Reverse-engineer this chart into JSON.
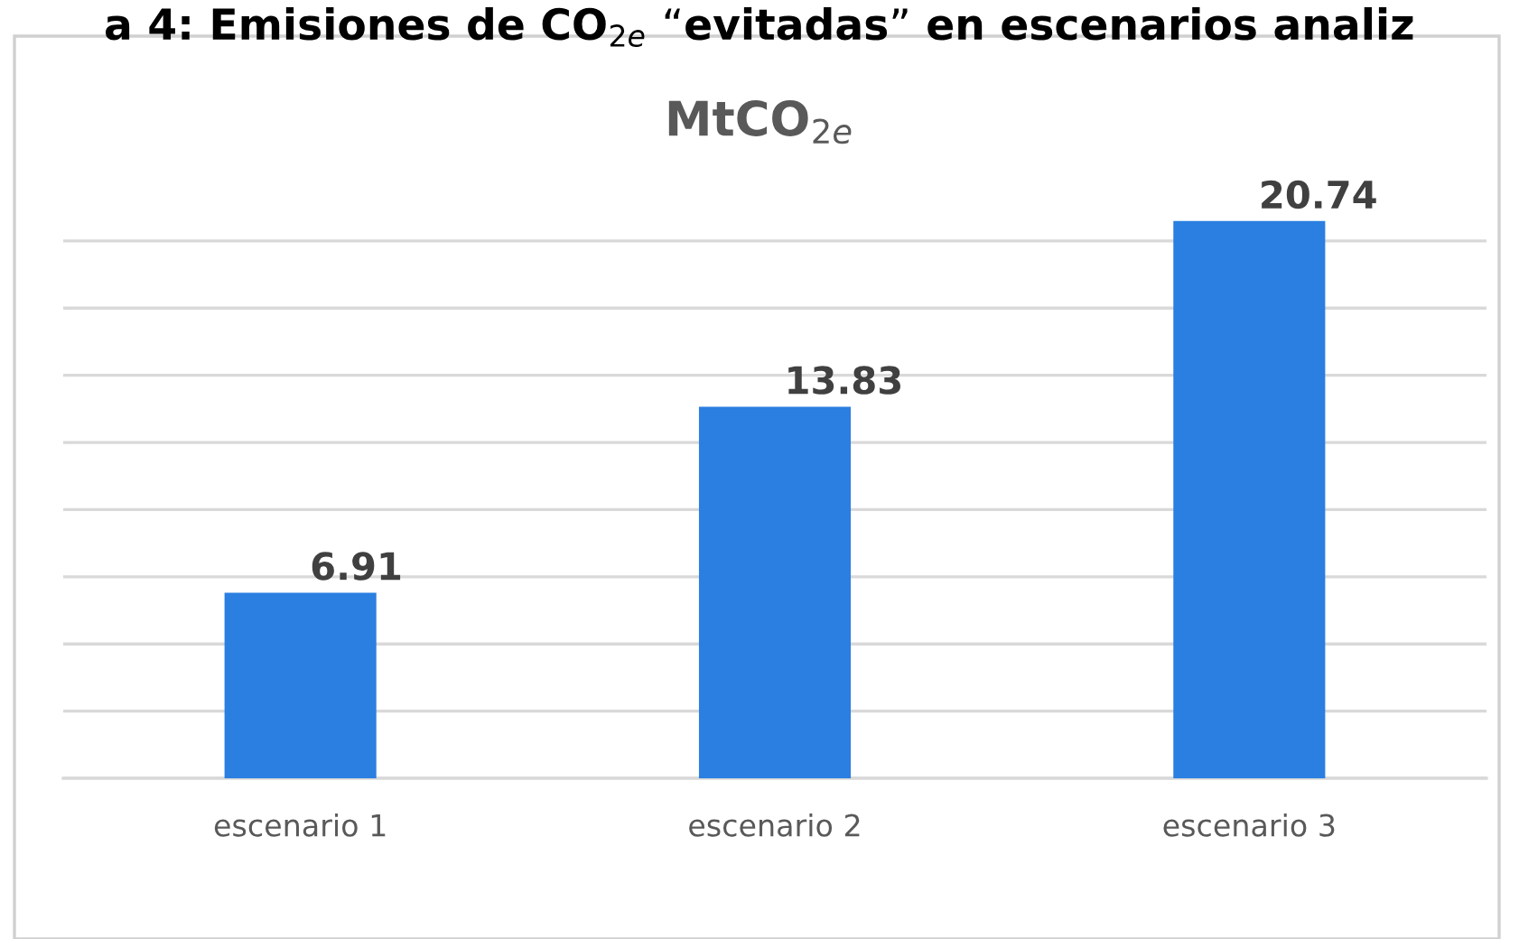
{
  "chart_data": {
    "type": "bar",
    "title": "a 4: Emisiones de CO$_{2e}$ “evitadas” en escenarios analiz",
    "subtitle": "MtCO$_{2e}$",
    "categories": [
      "escenario 1",
      "escenario 2",
      "escenario 3"
    ],
    "values": [
      6.91,
      13.83,
      20.74
    ],
    "color": "#2a7fe0",
    "data_labels": true,
    "tick_labels": "x",
    "grid": "y",
    "legend": false
  }
}
